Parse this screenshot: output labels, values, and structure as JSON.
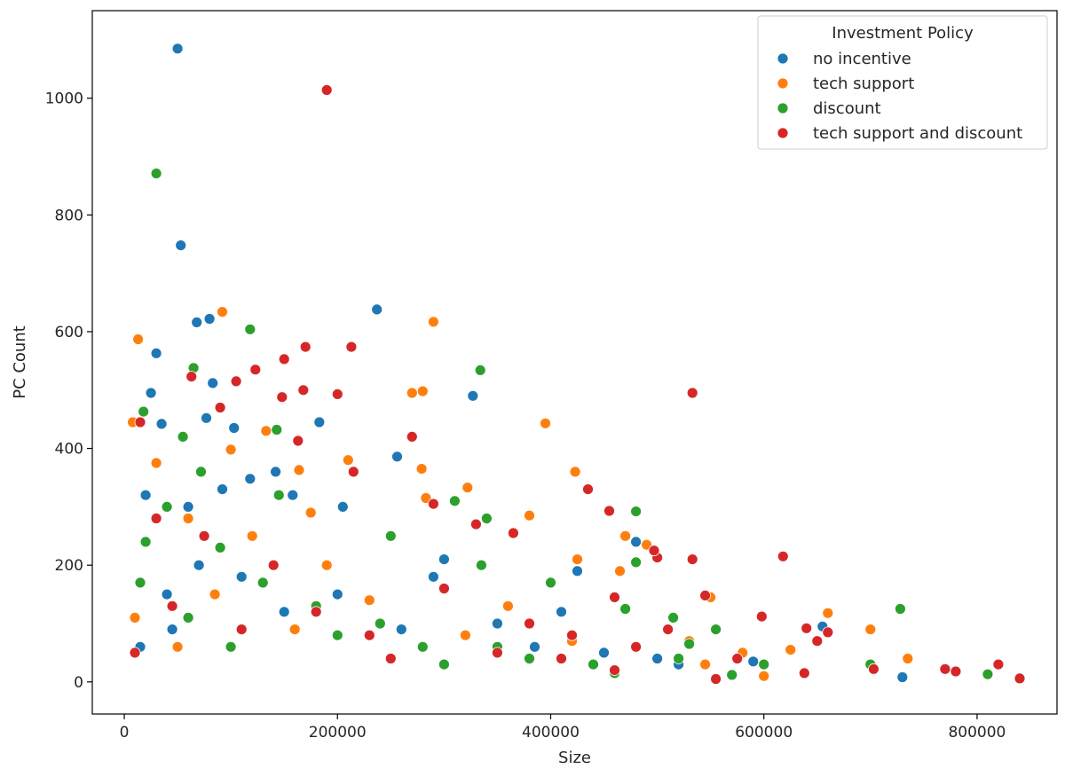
{
  "chart_data": {
    "type": "scatter",
    "title": "",
    "xlabel": "Size",
    "ylabel": "PC Count",
    "xlim": [
      -30000,
      875000
    ],
    "ylim": [
      -55,
      1150
    ],
    "x_ticks": [
      0,
      200000,
      400000,
      600000,
      800000
    ],
    "x_tick_labels": [
      "0",
      "200000",
      "400000",
      "600000",
      "800000"
    ],
    "y_ticks": [
      0,
      200,
      400,
      600,
      800,
      1000
    ],
    "y_tick_labels": [
      "0",
      "200",
      "400",
      "600",
      "800",
      "1000"
    ],
    "grid": false,
    "legend": {
      "title": "Investment Policy",
      "placement": "top-right"
    },
    "series": [
      {
        "name": "no incentive",
        "color": "#1f77b4",
        "points": [
          [
            50000,
            1085
          ],
          [
            53000,
            748
          ],
          [
            30000,
            563
          ],
          [
            68000,
            616
          ],
          [
            80000,
            622
          ],
          [
            25000,
            495
          ],
          [
            237000,
            638
          ],
          [
            327000,
            490
          ],
          [
            35000,
            442
          ],
          [
            83000,
            512
          ],
          [
            77000,
            452
          ],
          [
            256000,
            386
          ],
          [
            103000,
            435
          ],
          [
            183000,
            445
          ],
          [
            142000,
            360
          ],
          [
            92000,
            330
          ],
          [
            118000,
            348
          ],
          [
            60000,
            300
          ],
          [
            20000,
            320
          ],
          [
            158000,
            320
          ],
          [
            205000,
            300
          ],
          [
            425000,
            190
          ],
          [
            480000,
            240
          ],
          [
            520000,
            30
          ],
          [
            730000,
            8
          ],
          [
            655000,
            95
          ],
          [
            590000,
            35
          ],
          [
            410000,
            120
          ],
          [
            300000,
            210
          ],
          [
            290000,
            180
          ],
          [
            40000,
            150
          ],
          [
            70000,
            200
          ],
          [
            110000,
            180
          ],
          [
            150000,
            120
          ],
          [
            200000,
            150
          ],
          [
            260000,
            90
          ],
          [
            350000,
            100
          ],
          [
            385000,
            60
          ],
          [
            450000,
            50
          ],
          [
            500000,
            40
          ],
          [
            15000,
            60
          ],
          [
            45000,
            90
          ]
        ]
      },
      {
        "name": "tech support",
        "color": "#ff7f0e",
        "points": [
          [
            13000,
            587
          ],
          [
            92000,
            634
          ],
          [
            290000,
            617
          ],
          [
            8000,
            445
          ],
          [
            280000,
            498
          ],
          [
            270000,
            495
          ],
          [
            395000,
            443
          ],
          [
            423000,
            360
          ],
          [
            322000,
            333
          ],
          [
            279000,
            365
          ],
          [
            210000,
            380
          ],
          [
            133000,
            430
          ],
          [
            283000,
            315
          ],
          [
            164000,
            363
          ],
          [
            175000,
            290
          ],
          [
            380000,
            285
          ],
          [
            470000,
            250
          ],
          [
            465000,
            190
          ],
          [
            425000,
            210
          ],
          [
            490000,
            235
          ],
          [
            550000,
            145
          ],
          [
            660000,
            118
          ],
          [
            700000,
            90
          ],
          [
            735000,
            40
          ],
          [
            600000,
            10
          ],
          [
            625000,
            55
          ],
          [
            545000,
            30
          ],
          [
            100000,
            398
          ],
          [
            30000,
            375
          ],
          [
            60000,
            280
          ],
          [
            120000,
            250
          ],
          [
            190000,
            200
          ],
          [
            230000,
            140
          ],
          [
            320000,
            80
          ],
          [
            360000,
            130
          ],
          [
            420000,
            70
          ],
          [
            530000,
            70
          ],
          [
            580000,
            50
          ],
          [
            10000,
            110
          ],
          [
            50000,
            60
          ],
          [
            85000,
            150
          ],
          [
            160000,
            90
          ]
        ]
      },
      {
        "name": "discount",
        "color": "#2ca02c",
        "points": [
          [
            30000,
            871
          ],
          [
            118000,
            604
          ],
          [
            65000,
            538
          ],
          [
            334000,
            534
          ],
          [
            18000,
            463
          ],
          [
            55000,
            420
          ],
          [
            143000,
            432
          ],
          [
            72000,
            360
          ],
          [
            145000,
            320
          ],
          [
            310000,
            310
          ],
          [
            480000,
            292
          ],
          [
            340000,
            280
          ],
          [
            250000,
            250
          ],
          [
            480000,
            205
          ],
          [
            335000,
            200
          ],
          [
            400000,
            170
          ],
          [
            555000,
            90
          ],
          [
            515000,
            110
          ],
          [
            530000,
            65
          ],
          [
            600000,
            30
          ],
          [
            700000,
            30
          ],
          [
            728000,
            125
          ],
          [
            810000,
            13
          ],
          [
            570000,
            12
          ],
          [
            20000,
            240
          ],
          [
            40000,
            300
          ],
          [
            90000,
            230
          ],
          [
            130000,
            170
          ],
          [
            180000,
            130
          ],
          [
            240000,
            100
          ],
          [
            280000,
            60
          ],
          [
            380000,
            40
          ],
          [
            440000,
            30
          ],
          [
            470000,
            125
          ],
          [
            15000,
            170
          ],
          [
            60000,
            110
          ],
          [
            100000,
            60
          ],
          [
            200000,
            80
          ],
          [
            300000,
            30
          ],
          [
            350000,
            60
          ],
          [
            460000,
            15
          ],
          [
            520000,
            40
          ]
        ]
      },
      {
        "name": "tech support and discount",
        "color": "#d62728",
        "points": [
          [
            190000,
            1014
          ],
          [
            533000,
            495
          ],
          [
            170000,
            574
          ],
          [
            213000,
            574
          ],
          [
            150000,
            553
          ],
          [
            123000,
            535
          ],
          [
            63000,
            523
          ],
          [
            105000,
            515
          ],
          [
            168000,
            500
          ],
          [
            200000,
            493
          ],
          [
            148000,
            488
          ],
          [
            270000,
            420
          ],
          [
            163000,
            413
          ],
          [
            435000,
            330
          ],
          [
            455000,
            293
          ],
          [
            618000,
            215
          ],
          [
            533000,
            210
          ],
          [
            500000,
            213
          ],
          [
            497000,
            225
          ],
          [
            460000,
            145
          ],
          [
            545000,
            148
          ],
          [
            598000,
            112
          ],
          [
            640000,
            92
          ],
          [
            660000,
            85
          ],
          [
            638000,
            15
          ],
          [
            650000,
            70
          ],
          [
            770000,
            22
          ],
          [
            780000,
            18
          ],
          [
            820000,
            30
          ],
          [
            840000,
            6
          ],
          [
            703000,
            22
          ],
          [
            555000,
            5
          ],
          [
            575000,
            40
          ],
          [
            460000,
            20
          ],
          [
            420000,
            80
          ],
          [
            365000,
            255
          ],
          [
            330000,
            270
          ],
          [
            290000,
            305
          ],
          [
            215000,
            360
          ],
          [
            90000,
            470
          ],
          [
            15000,
            445
          ],
          [
            30000,
            280
          ],
          [
            75000,
            250
          ],
          [
            140000,
            200
          ],
          [
            180000,
            120
          ],
          [
            230000,
            80
          ],
          [
            300000,
            160
          ],
          [
            350000,
            50
          ],
          [
            380000,
            100
          ],
          [
            410000,
            40
          ],
          [
            480000,
            60
          ],
          [
            510000,
            90
          ],
          [
            10000,
            50
          ],
          [
            45000,
            130
          ],
          [
            110000,
            90
          ],
          [
            250000,
            40
          ]
        ]
      }
    ]
  }
}
